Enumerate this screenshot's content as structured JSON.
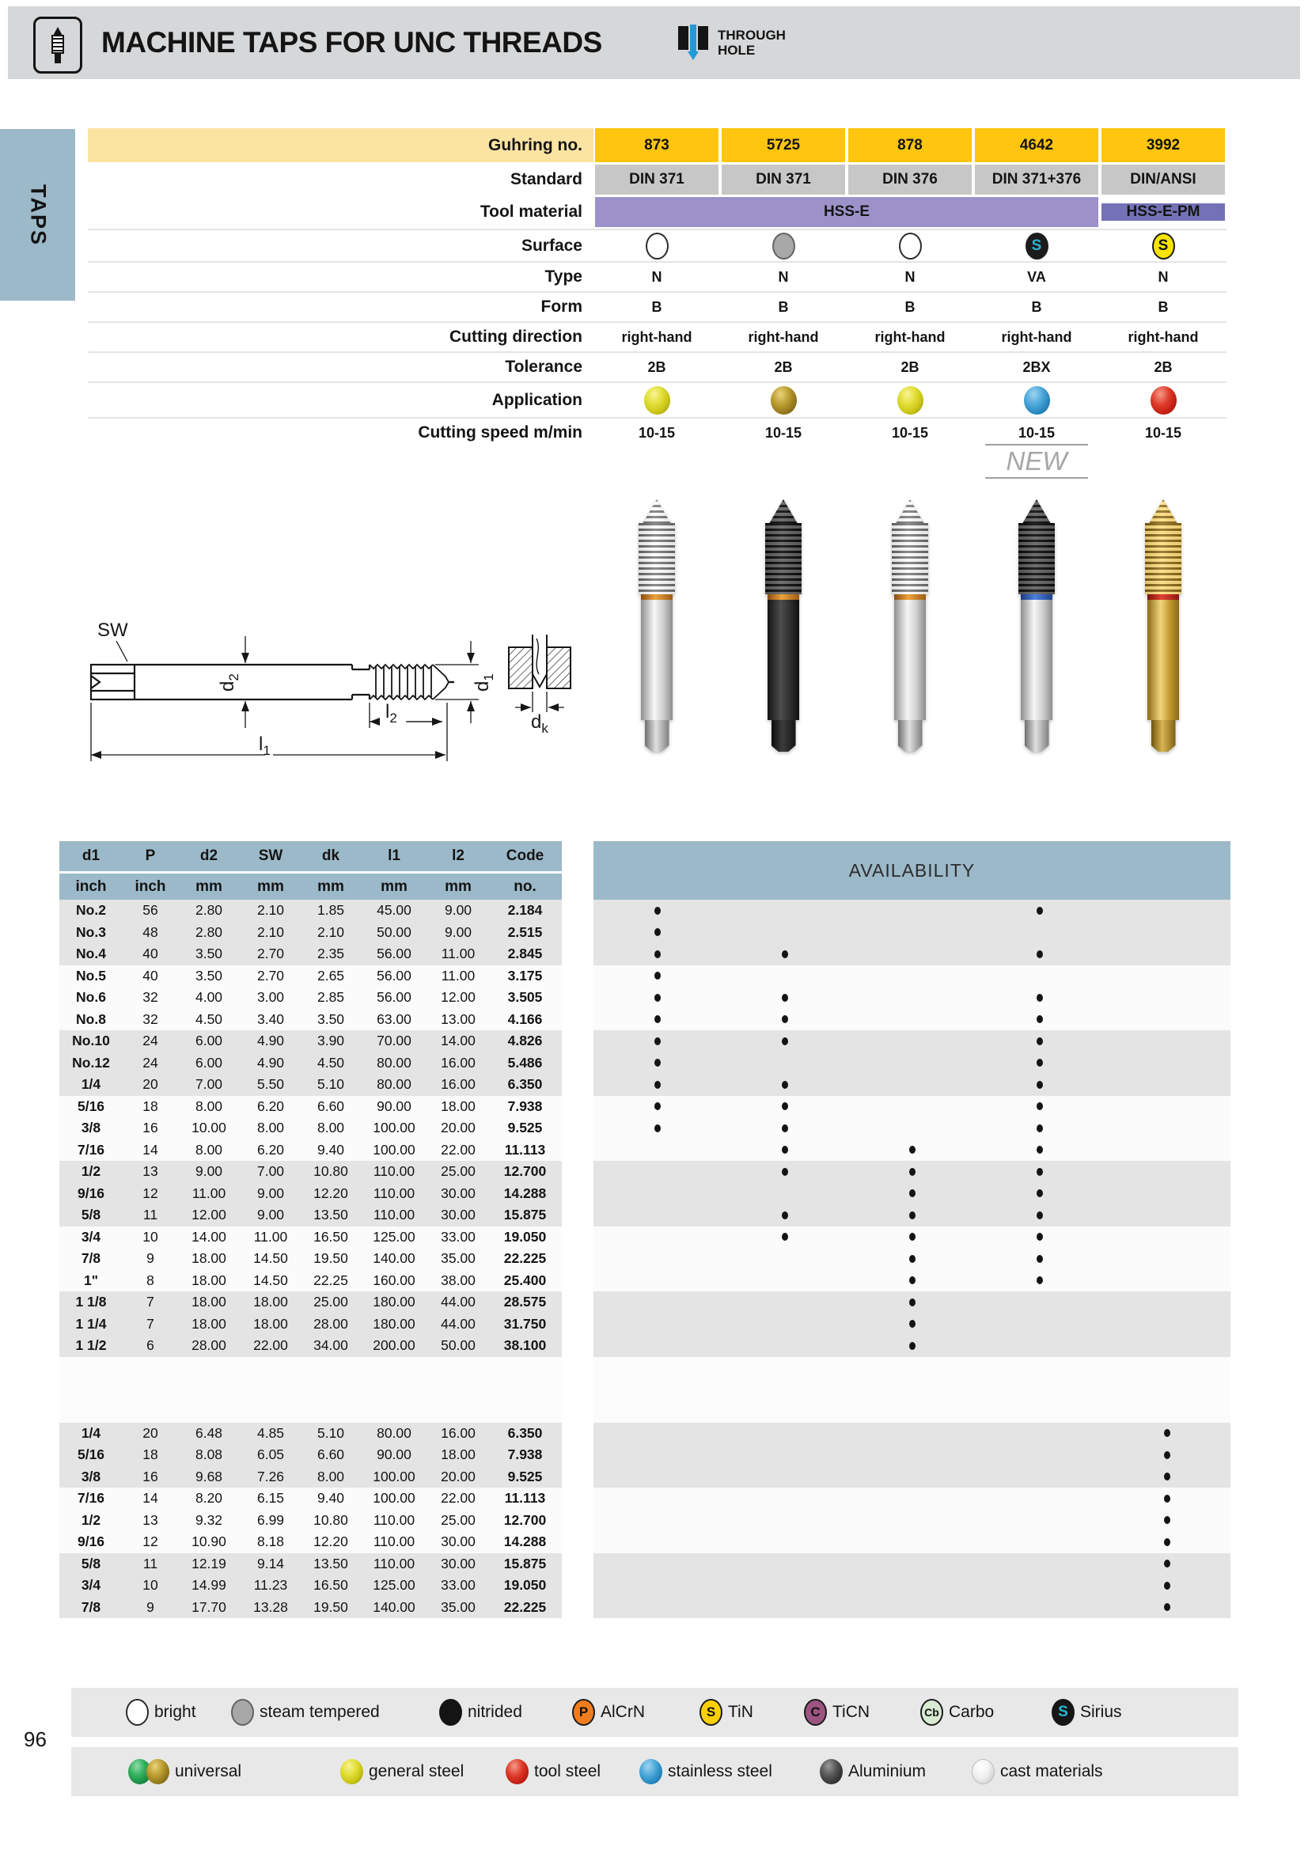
{
  "header": {
    "title": "MACHINE TAPS FOR UNC THREADS",
    "badge_line1": "THROUGH",
    "badge_line2": "HOLE"
  },
  "sidebar": {
    "tab": "TAPS"
  },
  "page_number": "96",
  "new_label": "NEW",
  "spec": {
    "labels": {
      "guhring_no": "Guhring no.",
      "standard": "Standard",
      "tool_material": "Tool material",
      "surface": "Surface",
      "type": "Type",
      "form": "Form",
      "cutting_direction": "Cutting direction",
      "tolerance": "Tolerance",
      "application": "Application",
      "cutting_speed": "Cutting speed m/min"
    },
    "guhring_no": [
      "873",
      "5725",
      "878",
      "4642",
      "3992"
    ],
    "standard": [
      "DIN 371",
      "DIN 371",
      "DIN 376",
      "DIN 371+376",
      "DIN/ANSI"
    ],
    "tool_material": {
      "hss_e": "HSS-E",
      "hss_e_pm": "HSS-E-PM"
    },
    "surface_icons": [
      "bright",
      "steam-tempered",
      "bright",
      "sirius",
      "tin"
    ],
    "surface_letter": "S",
    "type": [
      "N",
      "N",
      "N",
      "VA",
      "N"
    ],
    "form": [
      "B",
      "B",
      "B",
      "B",
      "B"
    ],
    "cutting_direction": [
      "right-hand",
      "right-hand",
      "right-hand",
      "right-hand",
      "right-hand"
    ],
    "tolerance": [
      "2B",
      "2B",
      "2B",
      "2BX",
      "2B"
    ],
    "application": [
      "yellow",
      "olive",
      "yellow",
      "blue",
      "red"
    ],
    "cutting_speed": [
      "10-15",
      "10-15",
      "10-15",
      "10-15",
      "10-15"
    ]
  },
  "drawing": {
    "sw": "SW",
    "d1": [
      "d",
      "1"
    ],
    "d2": [
      "d",
      "2"
    ],
    "l1": [
      "l",
      "1"
    ],
    "l2": [
      "l",
      "2"
    ],
    "dk": [
      "d",
      "k"
    ]
  },
  "table": {
    "headers": [
      "d1",
      "P",
      "d2",
      "SW",
      "dk",
      "l1",
      "l2",
      "Code"
    ],
    "units": [
      "inch",
      "inch",
      "mm",
      "mm",
      "mm",
      "mm",
      "mm",
      "no."
    ],
    "availability_title": "AVAILABILITY",
    "group1": [
      {
        "c": [
          "No.2",
          "56",
          "2.80",
          "2.10",
          "1.85",
          "45.00",
          "9.00",
          "2.184"
        ],
        "a": [
          1,
          0,
          0,
          1,
          0
        ]
      },
      {
        "c": [
          "No.3",
          "48",
          "2.80",
          "2.10",
          "2.10",
          "50.00",
          "9.00",
          "2.515"
        ],
        "a": [
          1,
          0,
          0,
          0,
          0
        ]
      },
      {
        "c": [
          "No.4",
          "40",
          "3.50",
          "2.70",
          "2.35",
          "56.00",
          "11.00",
          "2.845"
        ],
        "a": [
          1,
          1,
          0,
          1,
          0
        ]
      },
      {
        "c": [
          "No.5",
          "40",
          "3.50",
          "2.70",
          "2.65",
          "56.00",
          "11.00",
          "3.175"
        ],
        "a": [
          1,
          0,
          0,
          0,
          0
        ]
      },
      {
        "c": [
          "No.6",
          "32",
          "4.00",
          "3.00",
          "2.85",
          "56.00",
          "12.00",
          "3.505"
        ],
        "a": [
          1,
          1,
          0,
          1,
          0
        ]
      },
      {
        "c": [
          "No.8",
          "32",
          "4.50",
          "3.40",
          "3.50",
          "63.00",
          "13.00",
          "4.166"
        ],
        "a": [
          1,
          1,
          0,
          1,
          0
        ]
      },
      {
        "c": [
          "No.10",
          "24",
          "6.00",
          "4.90",
          "3.90",
          "70.00",
          "14.00",
          "4.826"
        ],
        "a": [
          1,
          1,
          0,
          1,
          0
        ]
      },
      {
        "c": [
          "No.12",
          "24",
          "6.00",
          "4.90",
          "4.50",
          "80.00",
          "16.00",
          "5.486"
        ],
        "a": [
          1,
          0,
          0,
          1,
          0
        ]
      },
      {
        "c": [
          "1/4",
          "20",
          "7.00",
          "5.50",
          "5.10",
          "80.00",
          "16.00",
          "6.350"
        ],
        "a": [
          1,
          1,
          0,
          1,
          0
        ]
      },
      {
        "c": [
          "5/16",
          "18",
          "8.00",
          "6.20",
          "6.60",
          "90.00",
          "18.00",
          "7.938"
        ],
        "a": [
          1,
          1,
          0,
          1,
          0
        ]
      },
      {
        "c": [
          "3/8",
          "16",
          "10.00",
          "8.00",
          "8.00",
          "100.00",
          "20.00",
          "9.525"
        ],
        "a": [
          1,
          1,
          0,
          1,
          0
        ]
      },
      {
        "c": [
          "7/16",
          "14",
          "8.00",
          "6.20",
          "9.40",
          "100.00",
          "22.00",
          "11.113"
        ],
        "a": [
          0,
          1,
          1,
          1,
          0
        ]
      },
      {
        "c": [
          "1/2",
          "13",
          "9.00",
          "7.00",
          "10.80",
          "110.00",
          "25.00",
          "12.700"
        ],
        "a": [
          0,
          1,
          1,
          1,
          0
        ]
      },
      {
        "c": [
          "9/16",
          "12",
          "11.00",
          "9.00",
          "12.20",
          "110.00",
          "30.00",
          "14.288"
        ],
        "a": [
          0,
          0,
          1,
          1,
          0
        ]
      },
      {
        "c": [
          "5/8",
          "11",
          "12.00",
          "9.00",
          "13.50",
          "110.00",
          "30.00",
          "15.875"
        ],
        "a": [
          0,
          1,
          1,
          1,
          0
        ]
      },
      {
        "c": [
          "3/4",
          "10",
          "14.00",
          "11.00",
          "16.50",
          "125.00",
          "33.00",
          "19.050"
        ],
        "a": [
          0,
          1,
          1,
          1,
          0
        ]
      },
      {
        "c": [
          "7/8",
          "9",
          "18.00",
          "14.50",
          "19.50",
          "140.00",
          "35.00",
          "22.225"
        ],
        "a": [
          0,
          0,
          1,
          1,
          0
        ]
      },
      {
        "c": [
          "1\"",
          "8",
          "18.00",
          "14.50",
          "22.25",
          "160.00",
          "38.00",
          "25.400"
        ],
        "a": [
          0,
          0,
          1,
          1,
          0
        ]
      },
      {
        "c": [
          "1 1/8",
          "7",
          "18.00",
          "18.00",
          "25.00",
          "180.00",
          "44.00",
          "28.575"
        ],
        "a": [
          0,
          0,
          1,
          0,
          0
        ]
      },
      {
        "c": [
          "1 1/4",
          "7",
          "18.00",
          "18.00",
          "28.00",
          "180.00",
          "44.00",
          "31.750"
        ],
        "a": [
          0,
          0,
          1,
          0,
          0
        ]
      },
      {
        "c": [
          "1 1/2",
          "6",
          "28.00",
          "22.00",
          "34.00",
          "200.00",
          "50.00",
          "38.100"
        ],
        "a": [
          0,
          0,
          1,
          0,
          0
        ]
      }
    ],
    "group2": [
      {
        "c": [
          "1/4",
          "20",
          "6.48",
          "4.85",
          "5.10",
          "80.00",
          "16.00",
          "6.350"
        ],
        "a": [
          0,
          0,
          0,
          0,
          1
        ]
      },
      {
        "c": [
          "5/16",
          "18",
          "8.08",
          "6.05",
          "6.60",
          "90.00",
          "18.00",
          "7.938"
        ],
        "a": [
          0,
          0,
          0,
          0,
          1
        ]
      },
      {
        "c": [
          "3/8",
          "16",
          "9.68",
          "7.26",
          "8.00",
          "100.00",
          "20.00",
          "9.525"
        ],
        "a": [
          0,
          0,
          0,
          0,
          1
        ]
      },
      {
        "c": [
          "7/16",
          "14",
          "8.20",
          "6.15",
          "9.40",
          "100.00",
          "22.00",
          "11.113"
        ],
        "a": [
          0,
          0,
          0,
          0,
          1
        ]
      },
      {
        "c": [
          "1/2",
          "13",
          "9.32",
          "6.99",
          "10.80",
          "110.00",
          "25.00",
          "12.700"
        ],
        "a": [
          0,
          0,
          0,
          0,
          1
        ]
      },
      {
        "c": [
          "9/16",
          "12",
          "10.90",
          "8.18",
          "12.20",
          "110.00",
          "30.00",
          "14.288"
        ],
        "a": [
          0,
          0,
          0,
          0,
          1
        ]
      },
      {
        "c": [
          "5/8",
          "11",
          "12.19",
          "9.14",
          "13.50",
          "110.00",
          "30.00",
          "15.875"
        ],
        "a": [
          0,
          0,
          0,
          0,
          1
        ]
      },
      {
        "c": [
          "3/4",
          "10",
          "14.99",
          "11.23",
          "16.50",
          "125.00",
          "33.00",
          "19.050"
        ],
        "a": [
          0,
          0,
          0,
          0,
          1
        ]
      },
      {
        "c": [
          "7/8",
          "9",
          "17.70",
          "13.28",
          "19.50",
          "140.00",
          "35.00",
          "22.225"
        ],
        "a": [
          0,
          0,
          0,
          0,
          1
        ]
      }
    ]
  },
  "legend_surface": [
    {
      "label": "bright",
      "letter": ""
    },
    {
      "label": "steam tempered",
      "letter": ""
    },
    {
      "label": "nitrided",
      "letter": ""
    },
    {
      "label": "AlCrN",
      "letter": "P"
    },
    {
      "label": "TiN",
      "letter": "S"
    },
    {
      "label": "TiCN",
      "letter": "C"
    },
    {
      "label": "Carbo",
      "letter": "Cb"
    },
    {
      "label": "Sirius",
      "letter": "S"
    }
  ],
  "legend_application": [
    {
      "label": "universal"
    },
    {
      "label": "general steel"
    },
    {
      "label": "tool steel"
    },
    {
      "label": "stainless steel"
    },
    {
      "label": "Aluminium"
    },
    {
      "label": "cast materials"
    }
  ],
  "colors": {
    "accent_gold": "#ffc50f",
    "label_band_yellow": "#fbe3a2",
    "standard_gray": "#c7c7c7",
    "hss_e_purple": "#9c92c9",
    "hss_e_pm_purple": "#7372b6",
    "header_blue": "#9cb9c9",
    "row_gray": "#e4e4e4",
    "row_white": "#fbfbfb",
    "through_hole_blue": "#1e9cd7",
    "sirius_cyan": "#29b7d3",
    "alcrn_orange": "#ef7d20",
    "tin_yellow": "#fdd005",
    "ticn_plum": "#9c5480",
    "carbo_green": "#d9ead2",
    "app_yellow": "#d6d21f",
    "app_olive": "#9a7d1e",
    "app_blue": "#2e9fd0",
    "app_red": "#cf1f1f",
    "app_green": "#1ea44f"
  }
}
